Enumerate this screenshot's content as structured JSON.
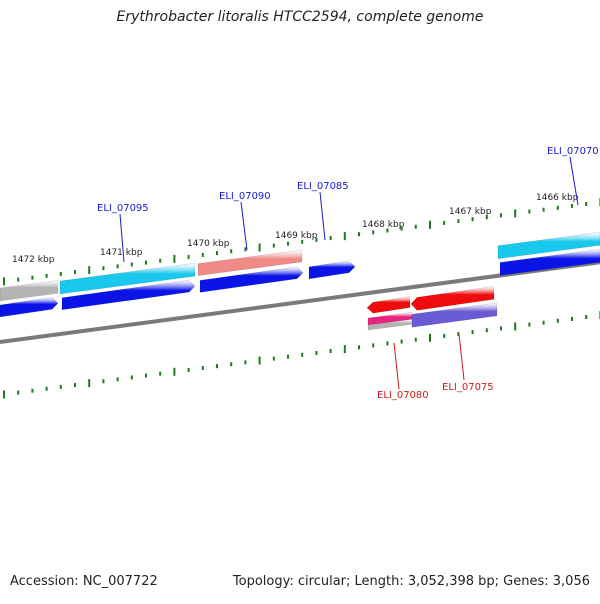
{
  "header": {
    "title": "Erythrobacter litoralis HTCC2594, complete genome"
  },
  "footer": {
    "accession": "Accession: NC_007722",
    "summary": "Topology: circular; Length: 3,052,398 bp; Genes: 3,056"
  },
  "ruler": {
    "labels": [
      {
        "text": "1472 kbp"
      },
      {
        "text": "1471 kbp"
      },
      {
        "text": "1470 kbp"
      },
      {
        "text": "1469 kbp"
      },
      {
        "text": "1468 kbp"
      },
      {
        "text": "1467 kbp"
      },
      {
        "text": "1466 kbp"
      }
    ]
  },
  "colors": {
    "backbone": "#7a7a7a",
    "tick": "#1d7a1d",
    "forward_label": "#1a1acc",
    "reverse_label": "#cc1a1a",
    "cds_blue": "#0a14e6",
    "cds_cyan": "#19c8ec",
    "cds_salmon": "#f08a86",
    "cds_red": "#ee0c0c",
    "cds_purple": "#6a5ad4",
    "cds_magenta": "#e8247e",
    "cds_gray": "#b4b4b4"
  },
  "genes": {
    "forward": [
      {
        "label": "ELI_07095"
      },
      {
        "label": "ELI_07090"
      },
      {
        "label": "ELI_07085"
      },
      {
        "label": "ELI_07070"
      }
    ],
    "reverse": [
      {
        "label": "ELI_07080"
      },
      {
        "label": "ELI_07075"
      }
    ]
  }
}
